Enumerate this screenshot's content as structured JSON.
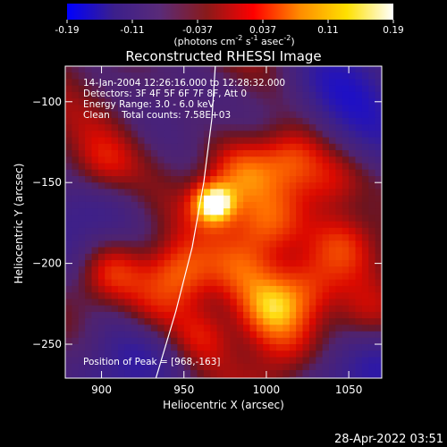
{
  "chart_data": {
    "type": "heatmap",
    "title": "Reconstructed RHESSI Image",
    "xlabel": "Heliocentric X (arcsec)",
    "ylabel": "Heliocentric Y (arcsec)",
    "xlim": [
      878,
      1070
    ],
    "ylim": [
      -271,
      -78
    ],
    "x_ticks": [
      900,
      950,
      1000,
      1050
    ],
    "y_ticks": [
      -100,
      -150,
      -200,
      -250
    ],
    "colorbar": {
      "min": -0.19,
      "max": 0.19,
      "ticks": [
        "-0.19",
        "-0.11",
        "-0.037",
        "0.037",
        "0.11",
        "0.19"
      ],
      "unit_label": "(photons cm",
      "unit_exp1": "-2",
      "unit_mid": " s",
      "unit_exp2": "-1",
      "unit_mid2": " asec",
      "unit_exp3": "-2",
      "unit_end": ")",
      "colors": [
        "#0000ff",
        "#3b1f8c",
        "#5a2b78",
        "#8a1a1a",
        "#ff0000",
        "#ff8c00",
        "#ffe000",
        "#ffffff"
      ]
    },
    "annotations": [
      "14-Jan-2004 12:26:16.000 to 12:28:32.000",
      "Detectors: 3F 4F 5F 6F 7F 8F, Att 0",
      "Energy Range: 3.0 - 6.0 keV",
      "Clean    Total counts: 7.58E+03"
    ],
    "peak_label": "Position of Peak = [968,-163]",
    "peak": {
      "x": 968,
      "y": -163,
      "value": 0.19
    },
    "bright_sources": [
      {
        "x": 968,
        "y": -163,
        "value": 0.19
      },
      {
        "x": 1002,
        "y": -229,
        "value": 0.12
      },
      {
        "x": 1016,
        "y": -135,
        "value": 0.1
      },
      {
        "x": 948,
        "y": -206,
        "value": 0.1
      },
      {
        "x": 905,
        "y": -206,
        "value": 0.09
      },
      {
        "x": 985,
        "y": -145,
        "value": 0.09
      },
      {
        "x": 1048,
        "y": -188,
        "value": 0.08
      },
      {
        "x": 1000,
        "y": -175,
        "value": 0.08
      },
      {
        "x": 1040,
        "y": -150,
        "value": 0.07
      },
      {
        "x": 960,
        "y": -245,
        "value": 0.07
      },
      {
        "x": 1025,
        "y": -215,
        "value": 0.07
      },
      {
        "x": 900,
        "y": -140,
        "value": 0.06
      },
      {
        "x": 1060,
        "y": -235,
        "value": 0.06
      },
      {
        "x": 930,
        "y": -230,
        "value": 0.05
      },
      {
        "x": 985,
        "y": -205,
        "value": 0.06
      },
      {
        "x": 1010,
        "y": -255,
        "value": 0.05
      }
    ],
    "dark_regions": [
      {
        "x": 915,
        "y": -260,
        "value": -0.12
      },
      {
        "x": 1060,
        "y": -265,
        "value": -0.12
      },
      {
        "x": 1045,
        "y": -90,
        "value": -0.1
      },
      {
        "x": 880,
        "y": -175,
        "value": -0.09
      },
      {
        "x": 1065,
        "y": -120,
        "value": -0.08
      },
      {
        "x": 940,
        "y": -100,
        "value": -0.06
      }
    ],
    "limb": [
      {
        "x": 933,
        "y": -271
      },
      {
        "x": 945,
        "y": -230
      },
      {
        "x": 955,
        "y": -190
      },
      {
        "x": 962,
        "y": -150
      },
      {
        "x": 967,
        "y": -110
      },
      {
        "x": 969,
        "y": -78
      }
    ]
  },
  "footer": {
    "timestamp": "28-Apr-2022 03:51"
  }
}
